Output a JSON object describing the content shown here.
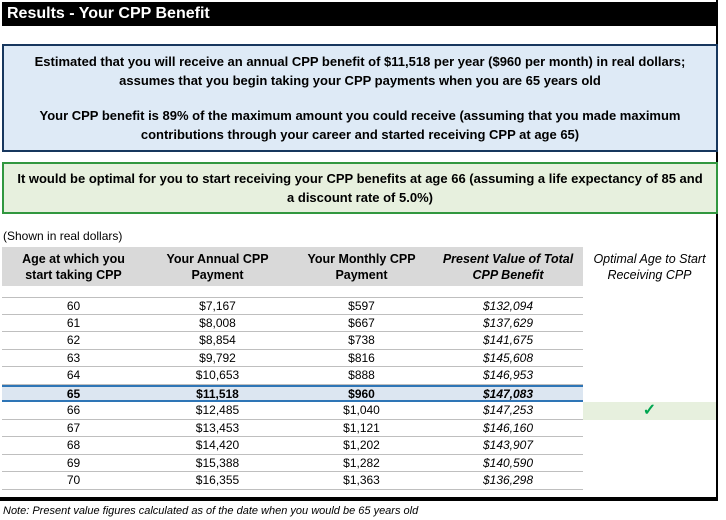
{
  "title": "Results - Your CPP Benefit",
  "summary_box": {
    "line1": "Estimated that you will receive an annual CPP benefit of $11,518 per year ($960 per month) in real dollars; assumes that you begin taking your CPP payments when you are 65 years old",
    "line2": "Your CPP benefit is 89% of the maximum amount you could receive (assuming that you made maximum contributions through your career and started receiving CPP at age 65)"
  },
  "optimal_box": {
    "text": "It would be optimal for you to start receiving your CPP benefits at age 66 (assuming a life expectancy of 85 and a discount rate of 5.0%)"
  },
  "caption": "(Shown in real dollars)",
  "table": {
    "headers": {
      "age": "Age at which you start taking CPP",
      "annual": "Your Annual CPP Payment",
      "monthly": "Your Monthly CPP Payment",
      "pv": "Present Value of Total CPP Benefit",
      "optimal": "Optimal Age to Start Receiving CPP"
    },
    "rows": [
      {
        "age": "60",
        "annual": "$7,167",
        "monthly": "$597",
        "pv": "$132,094",
        "optimal": ""
      },
      {
        "age": "61",
        "annual": "$8,008",
        "monthly": "$667",
        "pv": "$137,629",
        "optimal": ""
      },
      {
        "age": "62",
        "annual": "$8,854",
        "monthly": "$738",
        "pv": "$141,675",
        "optimal": ""
      },
      {
        "age": "63",
        "annual": "$9,792",
        "monthly": "$816",
        "pv": "$145,608",
        "optimal": ""
      },
      {
        "age": "64",
        "annual": "$10,653",
        "monthly": "$888",
        "pv": "$146,953",
        "optimal": ""
      },
      {
        "age": "65",
        "annual": "$11,518",
        "monthly": "$960",
        "pv": "$147,083",
        "optimal": ""
      },
      {
        "age": "66",
        "annual": "$12,485",
        "monthly": "$1,040",
        "pv": "$147,253",
        "optimal": "✓"
      },
      {
        "age": "67",
        "annual": "$13,453",
        "monthly": "$1,121",
        "pv": "$146,160",
        "optimal": ""
      },
      {
        "age": "68",
        "annual": "$14,420",
        "monthly": "$1,202",
        "pv": "$143,907",
        "optimal": ""
      },
      {
        "age": "69",
        "annual": "$15,388",
        "monthly": "$1,282",
        "pv": "$140,590",
        "optimal": ""
      },
      {
        "age": "70",
        "annual": "$16,355",
        "monthly": "$1,363",
        "pv": "$136,298",
        "optimal": ""
      }
    ]
  },
  "footnote": "Note: Present value figures calculated as of the date when you would be 65 years old",
  "colors": {
    "title_bar_bg": "#000000",
    "summary_box_bg": "#DEEAF6",
    "summary_box_border": "#17375E",
    "optimal_box_bg": "#E7F0DE",
    "optimal_box_border": "#31973F",
    "header_bg": "#D9D9D9",
    "highlight_row_bg": "#DCE6F1",
    "highlight_row_border": "#2E75B6",
    "checkmark_green": "#00A651"
  }
}
